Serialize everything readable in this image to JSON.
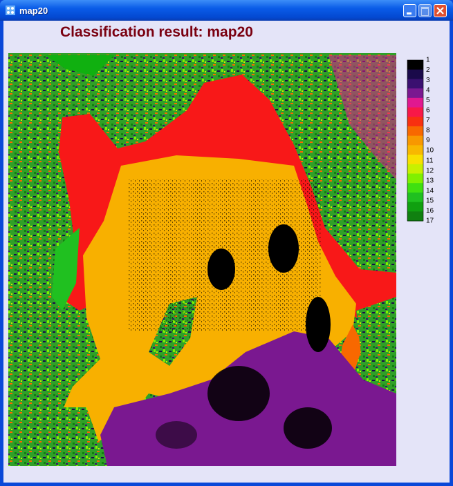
{
  "window": {
    "title": "map20"
  },
  "header": {
    "title": "Classification result: map20"
  },
  "colorbar": {
    "labels": [
      1,
      2,
      3,
      4,
      5,
      6,
      7,
      8,
      9,
      10,
      11,
      12,
      13,
      14,
      15,
      16,
      17
    ],
    "colors": [
      "#000000",
      "#1a0a4a",
      "#3a1070",
      "#7a1890",
      "#e01890",
      "#f81848",
      "#f83010",
      "#f86800",
      "#f89800",
      "#f8b800",
      "#f8e000",
      "#c8f000",
      "#80f000",
      "#40e010",
      "#20c020",
      "#10a010",
      "#108010"
    ]
  }
}
